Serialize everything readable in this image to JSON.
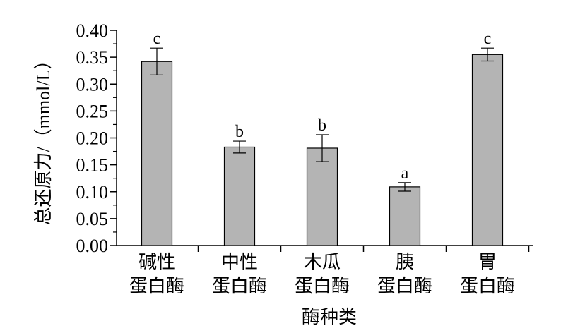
{
  "chart_data": {
    "type": "bar",
    "title": "",
    "xlabel": "酶种类",
    "ylabel": "总还原力/（mmol/L）",
    "ylim": [
      0,
      0.4
    ],
    "yticks": [
      "0.00",
      "0.05",
      "0.10",
      "0.15",
      "0.20",
      "0.25",
      "0.30",
      "0.35",
      "0.40"
    ],
    "categories": [
      [
        "碱性",
        "蛋白酶"
      ],
      [
        "中性",
        "蛋白酶"
      ],
      [
        "木瓜",
        "蛋白酶"
      ],
      [
        "胰",
        "蛋白酶"
      ],
      [
        "胃",
        "蛋白酶"
      ]
    ],
    "values": [
      0.342,
      0.183,
      0.181,
      0.109,
      0.355
    ],
    "errors": [
      0.025,
      0.011,
      0.025,
      0.008,
      0.012
    ],
    "significance_labels": [
      "c",
      "b",
      "b",
      "a",
      "c"
    ],
    "bar_color": "#b4b4b4",
    "grid": false
  }
}
